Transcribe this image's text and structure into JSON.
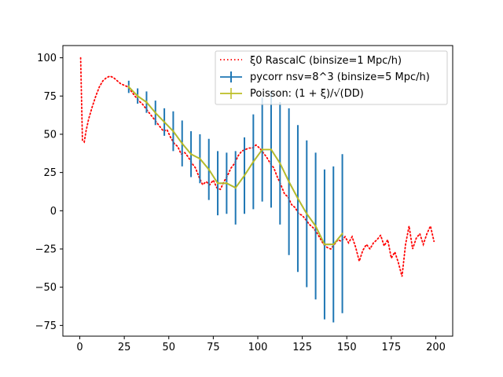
{
  "chart_data": {
    "type": "line",
    "title": "",
    "xlabel": "",
    "ylabel": "",
    "xlim": [
      -9.5,
      209.5
    ],
    "ylim": [
      -82,
      108
    ],
    "x_ticks": [
      0,
      25,
      50,
      75,
      100,
      125,
      150,
      175,
      200
    ],
    "y_ticks": [
      -75,
      -50,
      -25,
      0,
      25,
      50,
      75,
      100
    ],
    "grid": false,
    "legend_position": "top-right",
    "series": [
      {
        "name": "ξ0 RascalC (binsize=1 Mpc/h)",
        "style": "dotted",
        "color": "#ff0000",
        "x": [
          0.5,
          1.5,
          2.5,
          3.5,
          5,
          7,
          9,
          11,
          13,
          15,
          17,
          19,
          21,
          23,
          25,
          27,
          29,
          31,
          33,
          35,
          37,
          39,
          41,
          43,
          45,
          47,
          49,
          51,
          53,
          55,
          57,
          59,
          61,
          63,
          65,
          67,
          69,
          71,
          73,
          75,
          77,
          79,
          81,
          83,
          85,
          87,
          89,
          91,
          93,
          95,
          97,
          99,
          101,
          103,
          105,
          107,
          109,
          111,
          113,
          115,
          117,
          119,
          121,
          123,
          125,
          127,
          129,
          131,
          133,
          135,
          137,
          139,
          141,
          143,
          145,
          147,
          149,
          151,
          153,
          155,
          157,
          159,
          161,
          163,
          165,
          167,
          169,
          171,
          173,
          175,
          177,
          179,
          181,
          183,
          185,
          187,
          189,
          191,
          193,
          195,
          197,
          199
        ],
        "y": [
          100,
          46,
          45,
          52,
          60,
          68,
          75,
          81,
          85,
          87,
          88,
          87,
          85,
          83,
          82,
          81,
          78,
          75,
          72,
          70,
          67,
          64,
          61,
          58,
          55,
          52,
          53,
          48,
          44,
          42,
          37,
          38,
          35,
          31,
          28,
          22,
          17,
          19,
          17,
          20,
          15,
          14,
          19,
          23,
          28,
          31,
          36,
          39,
          40,
          41,
          41,
          43,
          41,
          38,
          35,
          31,
          28,
          22,
          17,
          11,
          9,
          4,
          2,
          -2,
          -3,
          -6,
          -9,
          -11,
          -14,
          -18,
          -22,
          -24,
          -25,
          -22,
          -19,
          -20,
          -17,
          -21,
          -17,
          -24,
          -33,
          -26,
          -22,
          -25,
          -21,
          -19,
          -16,
          -23,
          -19,
          -31,
          -27,
          -34,
          -43,
          -22,
          -10,
          -25,
          -18,
          -15,
          -22,
          -15,
          -10,
          -20
        ]
      },
      {
        "name": "pycorr nsv=8^3 (binsize=5 Mpc/h)",
        "style": "errorbar",
        "color": "#1f77b4",
        "x": [
          27.5,
          32.5,
          37.5,
          42.5,
          47.5,
          52.5,
          57.5,
          62.5,
          67.5,
          72.5,
          77.5,
          82.5,
          87.5,
          92.5,
          97.5,
          102.5,
          107.5,
          112.5,
          117.5,
          122.5,
          127.5,
          132.5,
          137.5,
          142.5,
          147.5
        ],
        "y": [
          81,
          75,
          71,
          64,
          58,
          52,
          44,
          37,
          34,
          27,
          18,
          18,
          15,
          23,
          32,
          40,
          40,
          31,
          19,
          8,
          -2,
          -10,
          -22,
          -22,
          -15
        ],
        "yerr": [
          4,
          5,
          7,
          8,
          9,
          13,
          15,
          15,
          16,
          20,
          21,
          20,
          24,
          25,
          31,
          34,
          38,
          40,
          48,
          48,
          48,
          48,
          49,
          51,
          52
        ]
      },
      {
        "name": "Poisson: (1 + ξ)/√(DD)",
        "style": "errorbar",
        "color": "#bcbd22",
        "x": [
          27.5,
          32.5,
          37.5,
          42.5,
          47.5,
          52.5,
          57.5,
          62.5,
          67.5,
          72.5,
          77.5,
          82.5,
          87.5,
          92.5,
          97.5,
          102.5,
          107.5,
          112.5,
          117.5,
          122.5,
          127.5,
          132.5,
          137.5,
          142.5,
          147.5
        ],
        "y": [
          81,
          75,
          71,
          64,
          58,
          52,
          44,
          37,
          34,
          27,
          18,
          18,
          15,
          23,
          32,
          40,
          40,
          31,
          19,
          8,
          -2,
          -10,
          -22,
          -22,
          -15
        ],
        "yerr": [
          0.8,
          0.8,
          0.7,
          0.7,
          0.6,
          0.6,
          0.6,
          0.5,
          0.5,
          0.5,
          0.4,
          0.4,
          0.4,
          0.4,
          0.4,
          0.4,
          0.4,
          0.3,
          0.3,
          0.3,
          0.3,
          0.3,
          0.3,
          0.3,
          0.3
        ]
      }
    ]
  }
}
